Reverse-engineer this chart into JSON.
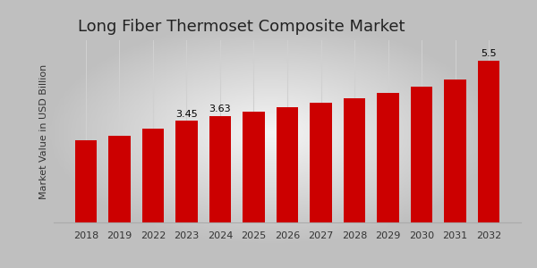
{
  "title": "Long Fiber Thermoset Composite Market",
  "ylabel": "Market Value in USD Billion",
  "years": [
    "2018",
    "2019",
    "2022",
    "2023",
    "2024",
    "2025",
    "2026",
    "2027",
    "2028",
    "2029",
    "2030",
    "2031",
    "2032"
  ],
  "values": [
    2.8,
    2.95,
    3.2,
    3.45,
    3.63,
    3.78,
    3.92,
    4.07,
    4.23,
    4.42,
    4.62,
    4.85,
    5.5
  ],
  "bar_color": "#cc0000",
  "annotated_bars": {
    "2023": "3.45",
    "2024": "3.63",
    "2032": "5.5"
  },
  "bg_left_color": "#c8c8c8",
  "bg_center_color": "#f5f5f5",
  "grid_color": "#d0d0d0",
  "bottom_stripe_color": "#cc0000",
  "ylim": [
    0,
    6.2
  ],
  "title_fontsize": 13,
  "ylabel_fontsize": 8,
  "tick_fontsize": 8,
  "annotation_fontsize": 8,
  "bar_width": 0.65
}
